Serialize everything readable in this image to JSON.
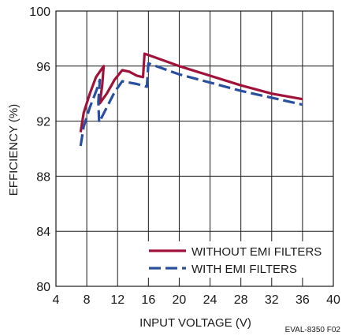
{
  "chart_data": {
    "type": "line",
    "xlabel": "INPUT VOLTAGE (V)",
    "ylabel": "EFFICIENCY (%)",
    "xlim": [
      4,
      40
    ],
    "ylim": [
      80,
      100
    ],
    "xticks": [
      "4",
      "8",
      "12",
      "16",
      "20",
      "24",
      "28",
      "32",
      "36",
      "40"
    ],
    "yticks": [
      "80",
      "84",
      "88",
      "92",
      "96",
      "100"
    ],
    "grid": true,
    "legend_position": "bottom-right",
    "note": "EVAL-8350 F02",
    "series": [
      {
        "name": "WITHOUT EMI FILTERS",
        "color": "#a0123a",
        "dash": "solid",
        "points": [
          [
            7.2,
            91.2
          ],
          [
            7.6,
            92.6
          ],
          [
            8.4,
            94.0
          ],
          [
            9.2,
            95.2
          ],
          [
            10.2,
            96.0
          ],
          [
            10.0,
            94.6
          ],
          [
            9.7,
            93.3
          ],
          [
            10.6,
            94.0
          ],
          [
            11.6,
            95.0
          ],
          [
            12.6,
            95.7
          ],
          [
            13.5,
            95.6
          ],
          [
            14.5,
            95.3
          ],
          [
            15.3,
            95.2
          ],
          [
            15.5,
            96.9
          ],
          [
            16.0,
            96.8
          ],
          [
            20.0,
            96.0
          ],
          [
            24.0,
            95.3
          ],
          [
            28.0,
            94.6
          ],
          [
            32.0,
            94.0
          ],
          [
            36.0,
            93.6
          ]
        ]
      },
      {
        "name": "WITH EMI FILTERS",
        "color": "#2a4f9e",
        "dash": "dashed",
        "points": [
          [
            7.2,
            90.2
          ],
          [
            7.6,
            91.6
          ],
          [
            8.4,
            93.0
          ],
          [
            9.3,
            94.3
          ],
          [
            9.7,
            95.0
          ],
          [
            9.5,
            93.4
          ],
          [
            9.6,
            91.9
          ],
          [
            10.6,
            93.0
          ],
          [
            11.6,
            94.1
          ],
          [
            12.6,
            94.9
          ],
          [
            13.5,
            94.8
          ],
          [
            14.5,
            94.7
          ],
          [
            15.8,
            94.5
          ],
          [
            16.0,
            96.2
          ],
          [
            20.0,
            95.4
          ],
          [
            24.0,
            94.8
          ],
          [
            28.0,
            94.2
          ],
          [
            32.0,
            93.7
          ],
          [
            36.0,
            93.2
          ]
        ]
      }
    ]
  }
}
